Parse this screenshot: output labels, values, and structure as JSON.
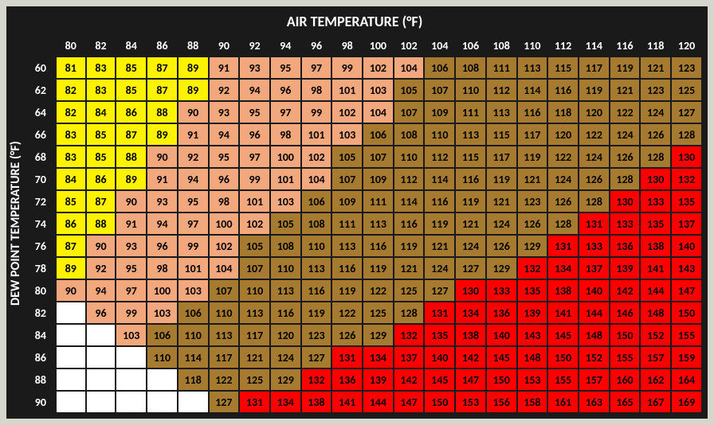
{
  "type": "heatmap-table",
  "title_top": "AIR TEMPERATURE (°F)",
  "title_left": "DEW POINT TEMPERATURE (°F)",
  "background_color": "#1a1a1a",
  "page_background": "#d6d6cc",
  "header_text_color": "#ffffff",
  "cell_text_color": "#000000",
  "title_fontsize": 18,
  "header_fontsize": 14,
  "cell_fontsize": 14,
  "colors": {
    "yellow": "#fef200",
    "peach": "#f2a77d",
    "tan": "#a67b2f",
    "red": "#ff0000",
    "empty": "#ffffff"
  },
  "air_temps": [
    80,
    82,
    84,
    86,
    88,
    90,
    92,
    94,
    96,
    98,
    100,
    102,
    104,
    106,
    108,
    110,
    112,
    114,
    116,
    118,
    120
  ],
  "dew_points": [
    60,
    62,
    64,
    66,
    68,
    70,
    72,
    74,
    76,
    78,
    80,
    82,
    84,
    86,
    88,
    90
  ],
  "cells": [
    [
      [
        81,
        "y"
      ],
      [
        83,
        "y"
      ],
      [
        85,
        "y"
      ],
      [
        87,
        "y"
      ],
      [
        89,
        "y"
      ],
      [
        91,
        "p"
      ],
      [
        93,
        "p"
      ],
      [
        95,
        "p"
      ],
      [
        97,
        "p"
      ],
      [
        99,
        "p"
      ],
      [
        102,
        "p"
      ],
      [
        104,
        "p"
      ],
      [
        106,
        "t"
      ],
      [
        108,
        "t"
      ],
      [
        111,
        "t"
      ],
      [
        113,
        "t"
      ],
      [
        115,
        "t"
      ],
      [
        117,
        "t"
      ],
      [
        119,
        "t"
      ],
      [
        121,
        "t"
      ],
      [
        123,
        "t"
      ]
    ],
    [
      [
        82,
        "y"
      ],
      [
        83,
        "y"
      ],
      [
        85,
        "y"
      ],
      [
        87,
        "y"
      ],
      [
        89,
        "y"
      ],
      [
        92,
        "p"
      ],
      [
        94,
        "p"
      ],
      [
        96,
        "p"
      ],
      [
        98,
        "p"
      ],
      [
        101,
        "p"
      ],
      [
        103,
        "p"
      ],
      [
        105,
        "t"
      ],
      [
        107,
        "t"
      ],
      [
        110,
        "t"
      ],
      [
        112,
        "t"
      ],
      [
        114,
        "t"
      ],
      [
        116,
        "t"
      ],
      [
        119,
        "t"
      ],
      [
        121,
        "t"
      ],
      [
        123,
        "t"
      ],
      [
        125,
        "t"
      ]
    ],
    [
      [
        82,
        "y"
      ],
      [
        84,
        "y"
      ],
      [
        86,
        "y"
      ],
      [
        88,
        "y"
      ],
      [
        90,
        "p"
      ],
      [
        93,
        "p"
      ],
      [
        95,
        "p"
      ],
      [
        97,
        "p"
      ],
      [
        99,
        "p"
      ],
      [
        102,
        "p"
      ],
      [
        104,
        "p"
      ],
      [
        107,
        "t"
      ],
      [
        109,
        "t"
      ],
      [
        111,
        "t"
      ],
      [
        113,
        "t"
      ],
      [
        116,
        "t"
      ],
      [
        118,
        "t"
      ],
      [
        120,
        "t"
      ],
      [
        122,
        "t"
      ],
      [
        124,
        "t"
      ],
      [
        127,
        "t"
      ]
    ],
    [
      [
        83,
        "y"
      ],
      [
        85,
        "y"
      ],
      [
        87,
        "y"
      ],
      [
        89,
        "y"
      ],
      [
        91,
        "p"
      ],
      [
        94,
        "p"
      ],
      [
        96,
        "p"
      ],
      [
        98,
        "p"
      ],
      [
        101,
        "p"
      ],
      [
        103,
        "p"
      ],
      [
        106,
        "t"
      ],
      [
        108,
        "t"
      ],
      [
        110,
        "t"
      ],
      [
        113,
        "t"
      ],
      [
        115,
        "t"
      ],
      [
        117,
        "t"
      ],
      [
        120,
        "t"
      ],
      [
        122,
        "t"
      ],
      [
        124,
        "t"
      ],
      [
        126,
        "t"
      ],
      [
        128,
        "t"
      ]
    ],
    [
      [
        83,
        "y"
      ],
      [
        85,
        "y"
      ],
      [
        88,
        "y"
      ],
      [
        90,
        "p"
      ],
      [
        92,
        "p"
      ],
      [
        95,
        "p"
      ],
      [
        97,
        "p"
      ],
      [
        100,
        "p"
      ],
      [
        102,
        "p"
      ],
      [
        105,
        "t"
      ],
      [
        107,
        "t"
      ],
      [
        110,
        "t"
      ],
      [
        112,
        "t"
      ],
      [
        115,
        "t"
      ],
      [
        117,
        "t"
      ],
      [
        119,
        "t"
      ],
      [
        122,
        "t"
      ],
      [
        124,
        "t"
      ],
      [
        126,
        "t"
      ],
      [
        128,
        "t"
      ],
      [
        130,
        "r"
      ]
    ],
    [
      [
        84,
        "y"
      ],
      [
        86,
        "y"
      ],
      [
        89,
        "y"
      ],
      [
        91,
        "p"
      ],
      [
        94,
        "p"
      ],
      [
        96,
        "p"
      ],
      [
        99,
        "p"
      ],
      [
        101,
        "p"
      ],
      [
        104,
        "p"
      ],
      [
        107,
        "t"
      ],
      [
        109,
        "t"
      ],
      [
        112,
        "t"
      ],
      [
        114,
        "t"
      ],
      [
        116,
        "t"
      ],
      [
        119,
        "t"
      ],
      [
        121,
        "t"
      ],
      [
        124,
        "t"
      ],
      [
        126,
        "t"
      ],
      [
        128,
        "t"
      ],
      [
        130,
        "r"
      ],
      [
        132,
        "r"
      ]
    ],
    [
      [
        85,
        "y"
      ],
      [
        87,
        "y"
      ],
      [
        90,
        "p"
      ],
      [
        93,
        "p"
      ],
      [
        95,
        "p"
      ],
      [
        98,
        "p"
      ],
      [
        101,
        "p"
      ],
      [
        103,
        "p"
      ],
      [
        106,
        "t"
      ],
      [
        109,
        "t"
      ],
      [
        111,
        "t"
      ],
      [
        114,
        "t"
      ],
      [
        116,
        "t"
      ],
      [
        119,
        "t"
      ],
      [
        121,
        "t"
      ],
      [
        123,
        "t"
      ],
      [
        126,
        "t"
      ],
      [
        128,
        "t"
      ],
      [
        130,
        "r"
      ],
      [
        133,
        "r"
      ],
      [
        135,
        "r"
      ]
    ],
    [
      [
        86,
        "y"
      ],
      [
        88,
        "y"
      ],
      [
        91,
        "p"
      ],
      [
        94,
        "p"
      ],
      [
        97,
        "p"
      ],
      [
        100,
        "p"
      ],
      [
        102,
        "p"
      ],
      [
        105,
        "t"
      ],
      [
        108,
        "t"
      ],
      [
        111,
        "t"
      ],
      [
        113,
        "t"
      ],
      [
        116,
        "t"
      ],
      [
        119,
        "t"
      ],
      [
        121,
        "t"
      ],
      [
        124,
        "t"
      ],
      [
        126,
        "t"
      ],
      [
        128,
        "t"
      ],
      [
        131,
        "r"
      ],
      [
        133,
        "r"
      ],
      [
        135,
        "r"
      ],
      [
        137,
        "r"
      ]
    ],
    [
      [
        87,
        "y"
      ],
      [
        90,
        "p"
      ],
      [
        93,
        "p"
      ],
      [
        96,
        "p"
      ],
      [
        99,
        "p"
      ],
      [
        102,
        "p"
      ],
      [
        105,
        "t"
      ],
      [
        108,
        "t"
      ],
      [
        110,
        "t"
      ],
      [
        113,
        "t"
      ],
      [
        116,
        "t"
      ],
      [
        119,
        "t"
      ],
      [
        121,
        "t"
      ],
      [
        124,
        "t"
      ],
      [
        126,
        "t"
      ],
      [
        129,
        "t"
      ],
      [
        131,
        "r"
      ],
      [
        133,
        "r"
      ],
      [
        136,
        "r"
      ],
      [
        138,
        "r"
      ],
      [
        140,
        "r"
      ]
    ],
    [
      [
        89,
        "y"
      ],
      [
        92,
        "p"
      ],
      [
        95,
        "p"
      ],
      [
        98,
        "p"
      ],
      [
        101,
        "p"
      ],
      [
        104,
        "p"
      ],
      [
        107,
        "t"
      ],
      [
        110,
        "t"
      ],
      [
        113,
        "t"
      ],
      [
        116,
        "t"
      ],
      [
        119,
        "t"
      ],
      [
        121,
        "t"
      ],
      [
        124,
        "t"
      ],
      [
        127,
        "t"
      ],
      [
        129,
        "t"
      ],
      [
        132,
        "r"
      ],
      [
        134,
        "r"
      ],
      [
        137,
        "r"
      ],
      [
        139,
        "r"
      ],
      [
        141,
        "r"
      ],
      [
        143,
        "r"
      ]
    ],
    [
      [
        90,
        "p"
      ],
      [
        94,
        "p"
      ],
      [
        97,
        "p"
      ],
      [
        100,
        "p"
      ],
      [
        103,
        "p"
      ],
      [
        107,
        "t"
      ],
      [
        110,
        "t"
      ],
      [
        113,
        "t"
      ],
      [
        116,
        "t"
      ],
      [
        119,
        "t"
      ],
      [
        122,
        "t"
      ],
      [
        125,
        "t"
      ],
      [
        127,
        "t"
      ],
      [
        130,
        "r"
      ],
      [
        133,
        "r"
      ],
      [
        135,
        "r"
      ],
      [
        138,
        "r"
      ],
      [
        140,
        "r"
      ],
      [
        142,
        "r"
      ],
      [
        144,
        "r"
      ],
      [
        147,
        "r"
      ]
    ],
    [
      [
        null,
        "e"
      ],
      [
        96,
        "p"
      ],
      [
        99,
        "p"
      ],
      [
        103,
        "p"
      ],
      [
        106,
        "t"
      ],
      [
        110,
        "t"
      ],
      [
        113,
        "t"
      ],
      [
        116,
        "t"
      ],
      [
        119,
        "t"
      ],
      [
        122,
        "t"
      ],
      [
        125,
        "t"
      ],
      [
        128,
        "t"
      ],
      [
        131,
        "r"
      ],
      [
        134,
        "r"
      ],
      [
        136,
        "r"
      ],
      [
        139,
        "r"
      ],
      [
        141,
        "r"
      ],
      [
        144,
        "r"
      ],
      [
        146,
        "r"
      ],
      [
        148,
        "r"
      ],
      [
        150,
        "r"
      ]
    ],
    [
      [
        null,
        "e"
      ],
      [
        null,
        "e"
      ],
      [
        103,
        "p"
      ],
      [
        106,
        "t"
      ],
      [
        110,
        "t"
      ],
      [
        113,
        "t"
      ],
      [
        117,
        "t"
      ],
      [
        120,
        "t"
      ],
      [
        123,
        "t"
      ],
      [
        126,
        "t"
      ],
      [
        129,
        "t"
      ],
      [
        132,
        "r"
      ],
      [
        135,
        "r"
      ],
      [
        138,
        "r"
      ],
      [
        140,
        "r"
      ],
      [
        143,
        "r"
      ],
      [
        145,
        "r"
      ],
      [
        148,
        "r"
      ],
      [
        150,
        "r"
      ],
      [
        152,
        "r"
      ],
      [
        155,
        "r"
      ]
    ],
    [
      [
        null,
        "e"
      ],
      [
        null,
        "e"
      ],
      [
        null,
        "e"
      ],
      [
        110,
        "t"
      ],
      [
        114,
        "t"
      ],
      [
        117,
        "t"
      ],
      [
        121,
        "t"
      ],
      [
        124,
        "t"
      ],
      [
        127,
        "t"
      ],
      [
        131,
        "r"
      ],
      [
        134,
        "r"
      ],
      [
        137,
        "r"
      ],
      [
        140,
        "r"
      ],
      [
        142,
        "r"
      ],
      [
        145,
        "r"
      ],
      [
        148,
        "r"
      ],
      [
        150,
        "r"
      ],
      [
        152,
        "r"
      ],
      [
        155,
        "r"
      ],
      [
        157,
        "r"
      ],
      [
        159,
        "r"
      ]
    ],
    [
      [
        null,
        "e"
      ],
      [
        null,
        "e"
      ],
      [
        null,
        "e"
      ],
      [
        null,
        "e"
      ],
      [
        118,
        "t"
      ],
      [
        122,
        "t"
      ],
      [
        125,
        "t"
      ],
      [
        129,
        "t"
      ],
      [
        132,
        "r"
      ],
      [
        136,
        "r"
      ],
      [
        139,
        "r"
      ],
      [
        142,
        "r"
      ],
      [
        145,
        "r"
      ],
      [
        147,
        "r"
      ],
      [
        150,
        "r"
      ],
      [
        153,
        "r"
      ],
      [
        155,
        "r"
      ],
      [
        157,
        "r"
      ],
      [
        160,
        "r"
      ],
      [
        162,
        "r"
      ],
      [
        164,
        "r"
      ]
    ],
    [
      [
        null,
        "e"
      ],
      [
        null,
        "e"
      ],
      [
        null,
        "e"
      ],
      [
        null,
        "e"
      ],
      [
        null,
        "e"
      ],
      [
        127,
        "t"
      ],
      [
        131,
        "r"
      ],
      [
        134,
        "r"
      ],
      [
        138,
        "r"
      ],
      [
        141,
        "r"
      ],
      [
        144,
        "r"
      ],
      [
        147,
        "r"
      ],
      [
        150,
        "r"
      ],
      [
        153,
        "r"
      ],
      [
        156,
        "r"
      ],
      [
        158,
        "r"
      ],
      [
        161,
        "r"
      ],
      [
        163,
        "r"
      ],
      [
        165,
        "r"
      ],
      [
        167,
        "r"
      ],
      [
        169,
        "r"
      ]
    ]
  ]
}
